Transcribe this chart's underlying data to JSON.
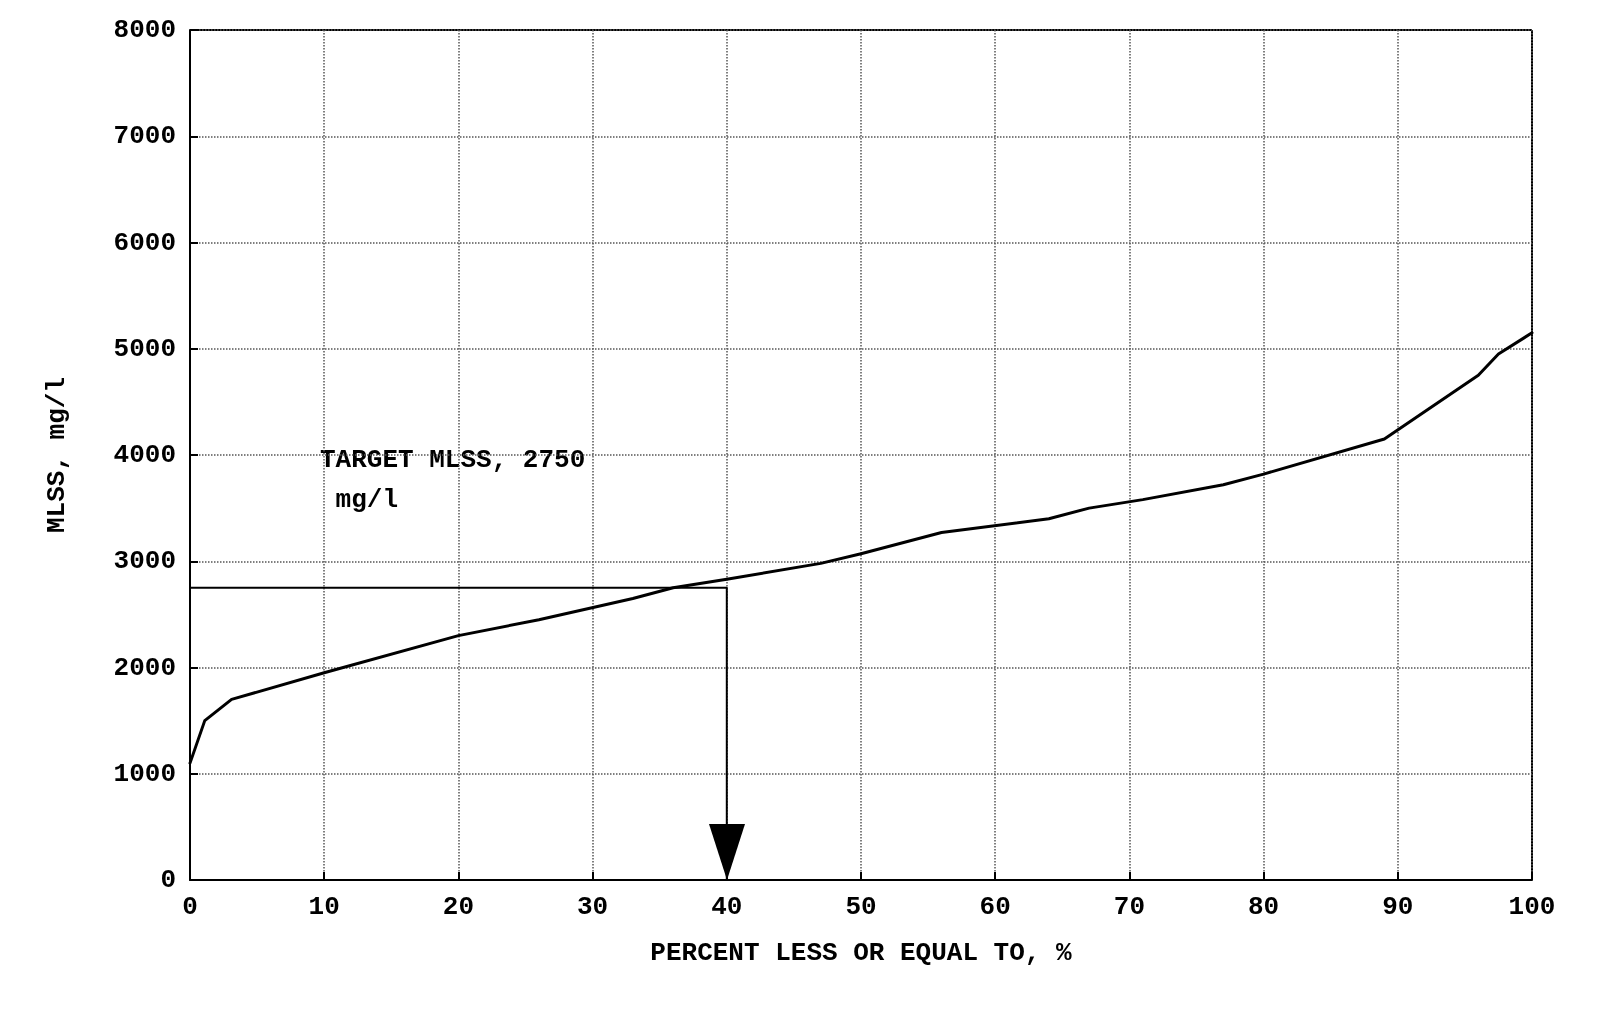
{
  "chart_data": {
    "type": "line",
    "xlabel": "PERCENT LESS OR EQUAL TO, %",
    "ylabel": "MLSS, mg/l",
    "series": [
      {
        "color": "#000000",
        "x": [
          0,
          1.1,
          3.1,
          10,
          20,
          26,
          33,
          36,
          40,
          47,
          50,
          56,
          64,
          67,
          71,
          77,
          80,
          89,
          96,
          97.5,
          100
        ],
        "values": [
          1100,
          1500,
          1700,
          1950,
          2300,
          2450,
          2650,
          2750,
          2830,
          2980,
          3070,
          3270,
          3400,
          3500,
          3580,
          3720,
          3820,
          4150,
          4750,
          4950,
          5150
        ]
      },
      {
        "color": "#000000",
        "x": [
          0,
          40,
          40
        ],
        "values": [
          2750,
          2750,
          0
        ],
        "line_style": "solid"
      }
    ],
    "xlim": [
      0,
      100
    ],
    "xticks": [
      0,
      10,
      20,
      30,
      40,
      50,
      60,
      70,
      80,
      90,
      100
    ],
    "ylim": [
      0,
      8000
    ],
    "yticks": [
      0,
      1000,
      2000,
      3000,
      4000,
      5000,
      6000,
      7000,
      8000
    ],
    "grid": true,
    "marker": "none",
    "line_style": "solid",
    "annotations": [
      "TARGET MLSS, 2750 mg/l"
    ]
  }
}
